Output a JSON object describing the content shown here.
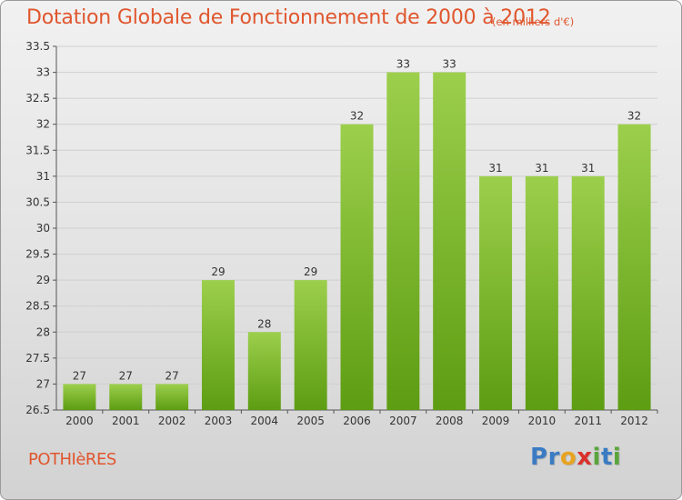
{
  "header": {
    "title": "Dotation Globale de Fonctionnement de 2000 à 2012",
    "unit": "(en milliers d'€)"
  },
  "footer": {
    "commune": "POTHIèRES",
    "logo_letters": [
      {
        "ch": "P",
        "color": "#3a7cc4"
      },
      {
        "ch": "r",
        "color": "#3a7cc4"
      },
      {
        "ch": "o",
        "color": "#e8a420"
      },
      {
        "ch": "x",
        "color": "#d9302c"
      },
      {
        "ch": "i",
        "color": "#5aa53c"
      },
      {
        "ch": "t",
        "color": "#3a7cc4"
      },
      {
        "ch": "i",
        "color": "#5aa53c"
      }
    ]
  },
  "chart_data": {
    "type": "bar",
    "title": "Dotation Globale de Fonctionnement de 2000 à 2012",
    "categories": [
      "2000",
      "2001",
      "2002",
      "2003",
      "2004",
      "2005",
      "2006",
      "2007",
      "2008",
      "2009",
      "2010",
      "2011",
      "2012"
    ],
    "values": [
      27,
      27,
      27,
      29,
      28,
      29,
      32,
      33,
      33,
      31,
      31,
      31,
      32
    ],
    "value_labels": [
      "27",
      "27",
      "27",
      "29",
      "28",
      "29",
      "32",
      "33",
      "33",
      "31",
      "31",
      "31",
      "32"
    ],
    "ylim": [
      26.5,
      33.5
    ],
    "yticks": [
      "26.5",
      "27",
      "27.5",
      "28",
      "28.5",
      "29",
      "29.5",
      "30",
      "30.5",
      "31",
      "31.5",
      "32",
      "32.5",
      "33",
      "33.5"
    ],
    "grid": true,
    "colors": {
      "bar_light": "#9ccf4c",
      "bar_dark": "#5d9d12",
      "axis": "#555555",
      "grid": "#cfcfcf",
      "text": "#333333"
    }
  }
}
